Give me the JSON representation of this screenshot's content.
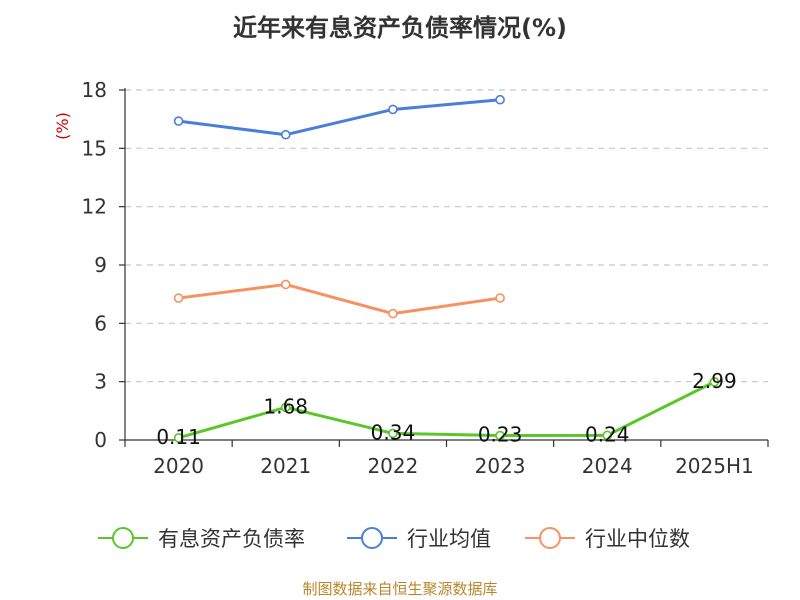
{
  "chart_data": {
    "type": "line",
    "title": "近年来有息资产负债率情况(%)",
    "ylabel": "(%)",
    "categories": [
      "2020",
      "2021",
      "2022",
      "2023",
      "2024",
      "2025H1"
    ],
    "ylim": [
      0,
      18
    ],
    "yticks": [
      0,
      3,
      6,
      9,
      12,
      15,
      18
    ],
    "grid": true,
    "legend_position": "bottom",
    "series": [
      {
        "name": "有息资产负债率",
        "color": "#5ac629",
        "values": [
          0.11,
          1.68,
          0.34,
          0.23,
          0.24,
          2.99
        ],
        "data_labels": [
          "0.11",
          "1.68",
          "0.34",
          "0.23",
          "0.24",
          "2.99"
        ]
      },
      {
        "name": "行业均值",
        "color": "#4a7fd9",
        "values": [
          16.4,
          15.7,
          17.0,
          17.5,
          null,
          null
        ]
      },
      {
        "name": "行业中位数",
        "color": "#f79160",
        "values": [
          7.3,
          8.0,
          6.5,
          7.3,
          null,
          null
        ]
      }
    ]
  },
  "source": "制图数据来自恒生聚源数据库"
}
